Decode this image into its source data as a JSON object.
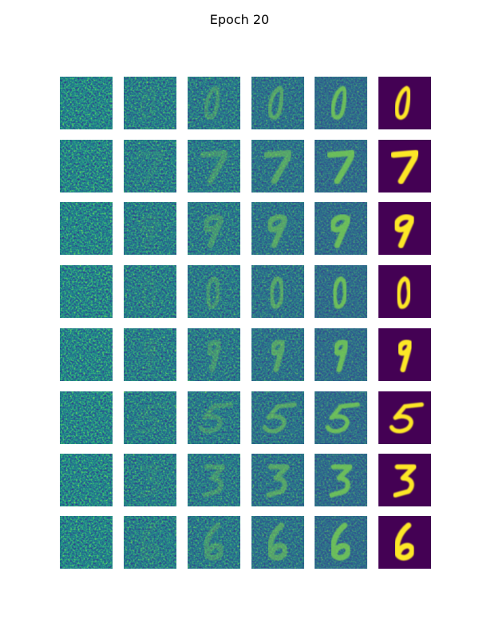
{
  "title": "Epoch 20"
}
